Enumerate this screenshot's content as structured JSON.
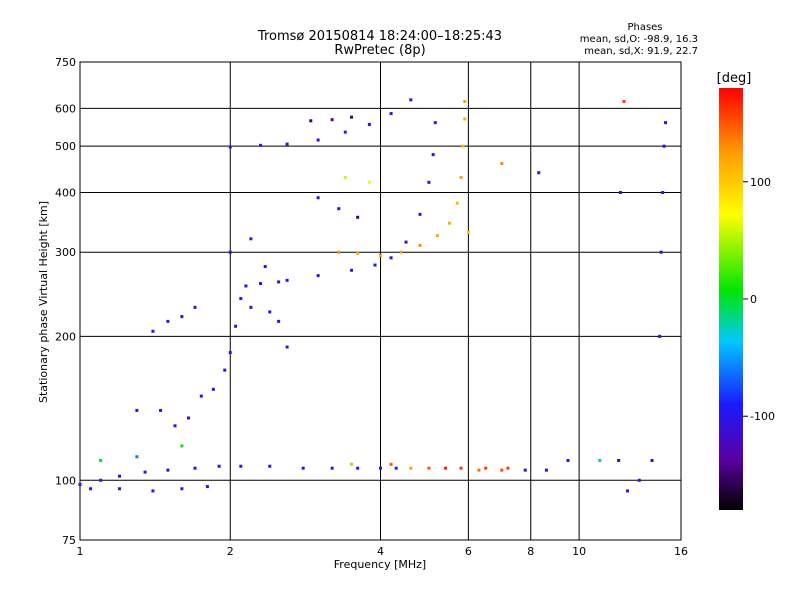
{
  "chart_data": {
    "type": "scatter",
    "title": "Tromsø 20150814 18:24:00–18:25:43",
    "subtitle": "RwPretec (8p)",
    "phases": {
      "heading": "Phases",
      "line_o": "mean, sd,O: -98.9, 16.3",
      "line_x": "mean, sd,X:  91.9, 22.7"
    },
    "xlabel": "Frequency [MHz]",
    "ylabel": "Stationary phase Virtual Height [km]",
    "xscale": "log",
    "yscale": "log",
    "xlim": [
      1,
      16
    ],
    "ylim": [
      75,
      750
    ],
    "x_ticks": [
      {
        "v": 1,
        "label": "1"
      },
      {
        "v": 2,
        "label": "2"
      },
      {
        "v": 4,
        "label": "4"
      },
      {
        "v": 6,
        "label": "6"
      },
      {
        "v": 8,
        "label": "8"
      },
      {
        "v": 10,
        "label": "10"
      },
      {
        "v": 16,
        "label": "16"
      }
    ],
    "x_grid": [
      2,
      4,
      6,
      8,
      10
    ],
    "y_ticks": [
      {
        "v": 75,
        "label": "75"
      },
      {
        "v": 100,
        "label": "100"
      },
      {
        "v": 200,
        "label": "200"
      },
      {
        "v": 300,
        "label": "300"
      },
      {
        "v": 400,
        "label": "400"
      },
      {
        "v": 500,
        "label": "500"
      },
      {
        "v": 600,
        "label": "600"
      },
      {
        "v": 750,
        "label": "750"
      }
    ],
    "y_grid": [
      100,
      200,
      300,
      400,
      500,
      600
    ],
    "colorbar": {
      "label": "[deg]",
      "range": [
        -180,
        180
      ],
      "ticks": [
        {
          "v": 100,
          "label": "100"
        },
        {
          "v": 0,
          "label": "0"
        },
        {
          "v": -100,
          "label": "-100"
        }
      ]
    },
    "series": [
      {
        "points": [
          [
            1.0,
            98,
            -100
          ],
          [
            1.1,
            100,
            -95
          ],
          [
            1.2,
            102,
            -105
          ],
          [
            1.35,
            104,
            -100
          ],
          [
            1.5,
            105,
            -110
          ],
          [
            1.7,
            106,
            -100
          ],
          [
            1.9,
            107,
            -95
          ],
          [
            1.05,
            96,
            -100
          ],
          [
            1.2,
            96,
            -110
          ],
          [
            1.4,
            95,
            -100
          ],
          [
            1.6,
            96,
            -95
          ],
          [
            1.8,
            97,
            -100
          ],
          [
            2.1,
            107,
            -100
          ],
          [
            2.4,
            107,
            -95
          ],
          [
            2.8,
            106,
            -100
          ],
          [
            3.2,
            106,
            -105
          ],
          [
            3.6,
            106,
            -100
          ],
          [
            4.0,
            106,
            -100
          ],
          [
            4.3,
            106,
            -90
          ],
          [
            4.6,
            106,
            120
          ],
          [
            5.0,
            106,
            150
          ],
          [
            5.4,
            106,
            170
          ],
          [
            5.8,
            106,
            160
          ],
          [
            6.3,
            105,
            140
          ],
          [
            7.0,
            105,
            150
          ],
          [
            7.8,
            105,
            -100
          ],
          [
            8.6,
            105,
            -100
          ],
          [
            1.3,
            140,
            -100
          ],
          [
            1.45,
            140,
            -105
          ],
          [
            1.55,
            130,
            -100
          ],
          [
            1.65,
            135,
            -95
          ],
          [
            1.75,
            150,
            -100
          ],
          [
            1.85,
            155,
            -110
          ],
          [
            1.95,
            170,
            -100
          ],
          [
            2.0,
            185,
            -100
          ],
          [
            2.05,
            210,
            -105
          ],
          [
            2.1,
            240,
            -100
          ],
          [
            2.15,
            255,
            -95
          ],
          [
            2.3,
            258,
            -100
          ],
          [
            2.6,
            262,
            -100
          ],
          [
            3.0,
            268,
            -105
          ],
          [
            3.5,
            275,
            -100
          ],
          [
            3.9,
            282,
            -95
          ],
          [
            4.2,
            292,
            -100
          ],
          [
            4.5,
            315,
            -100
          ],
          [
            4.8,
            360,
            -105
          ],
          [
            5.0,
            420,
            -100
          ],
          [
            5.1,
            480,
            -100
          ],
          [
            5.15,
            560,
            -95
          ],
          [
            3.3,
            300,
            130
          ],
          [
            3.6,
            298,
            110
          ],
          [
            4.0,
            295,
            120
          ],
          [
            4.4,
            300,
            125
          ],
          [
            4.8,
            310,
            130
          ],
          [
            5.2,
            325,
            120
          ],
          [
            5.5,
            345,
            115
          ],
          [
            5.7,
            380,
            110
          ],
          [
            5.8,
            430,
            120
          ],
          [
            5.85,
            500,
            110
          ],
          [
            5.9,
            570,
            115
          ],
          [
            5.9,
            620,
            120
          ],
          [
            2.0,
            498,
            -100
          ],
          [
            2.3,
            502,
            -95
          ],
          [
            2.6,
            505,
            -100
          ],
          [
            3.0,
            515,
            -100
          ],
          [
            3.4,
            535,
            -105
          ],
          [
            3.8,
            555,
            -100
          ],
          [
            4.2,
            585,
            -95
          ],
          [
            4.6,
            625,
            -100
          ],
          [
            2.9,
            565,
            -150
          ],
          [
            3.2,
            568,
            -140
          ],
          [
            3.5,
            575,
            -150
          ],
          [
            3.0,
            390,
            -100
          ],
          [
            3.3,
            370,
            -110
          ],
          [
            3.6,
            355,
            -150
          ],
          [
            3.4,
            430,
            60
          ],
          [
            3.8,
            420,
            70
          ],
          [
            1.4,
            205,
            -100
          ],
          [
            1.5,
            215,
            -105
          ],
          [
            1.6,
            220,
            -100
          ],
          [
            1.7,
            230,
            -95
          ],
          [
            2.2,
            230,
            -100
          ],
          [
            2.4,
            225,
            -105
          ],
          [
            2.5,
            215,
            -100
          ],
          [
            2.6,
            190,
            -110
          ],
          [
            2.0,
            300,
            -100
          ],
          [
            2.2,
            320,
            -105
          ],
          [
            2.35,
            280,
            -100
          ],
          [
            2.5,
            260,
            -100
          ],
          [
            1.1,
            110,
            0
          ],
          [
            1.3,
            112,
            -60
          ],
          [
            1.6,
            118,
            10
          ],
          [
            3.5,
            108,
            40
          ],
          [
            4.2,
            108,
            150
          ],
          [
            6.5,
            106,
            160
          ],
          [
            7.2,
            106,
            160
          ],
          [
            12.5,
            95,
            -100
          ],
          [
            13.2,
            100,
            -100
          ],
          [
            14.0,
            110,
            -100
          ],
          [
            14.5,
            200,
            -100
          ],
          [
            14.6,
            300,
            -100
          ],
          [
            14.7,
            400,
            -100
          ],
          [
            14.8,
            500,
            -100
          ],
          [
            14.9,
            560,
            -100
          ],
          [
            12.0,
            110,
            -120
          ],
          [
            12.1,
            400,
            -120
          ],
          [
            12.3,
            620,
            160
          ],
          [
            11.0,
            110,
            -20
          ],
          [
            9.5,
            110,
            -100
          ],
          [
            8.3,
            440,
            -100
          ],
          [
            7.0,
            460,
            130
          ],
          [
            6.0,
            330,
            100
          ]
        ]
      }
    ]
  }
}
